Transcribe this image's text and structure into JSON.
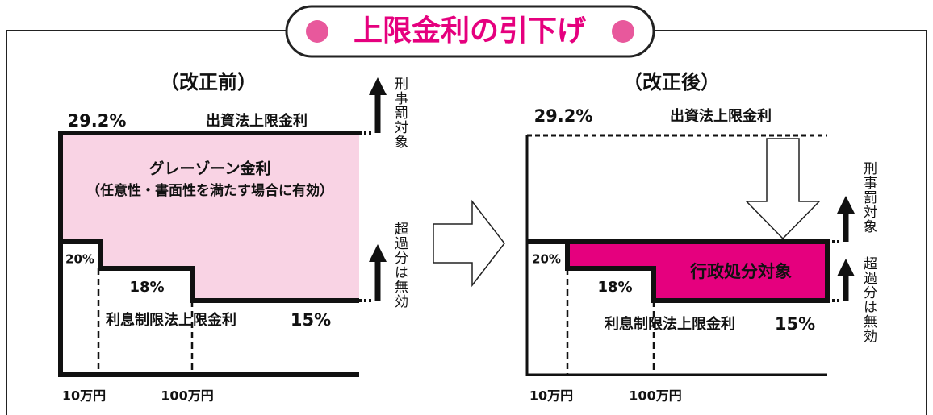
{
  "title": "上限金利の引下げ",
  "panels": [
    {
      "heading": "（改正前）",
      "top_rate": "29.2%",
      "top_label": "出資法上限金利",
      "zone_label": "グレーゾーン金利",
      "zone_note": "（任意性・書面性を満たす場合に有効）",
      "rate_20": "20%",
      "rate_18": "18%",
      "low_label": "利息制限法上限金利",
      "rate_15": "15%",
      "x_10": "10万円",
      "x_100": "100万円",
      "upper_arrow": "刑事罰対象",
      "lower_arrow": "超過分は無効"
    },
    {
      "heading": "（改正後）",
      "top_rate": "29.2%",
      "top_label": "出資法上限金利",
      "zone_label": "行政処分対象",
      "rate_20": "20%",
      "rate_18": "18%",
      "low_label": "利息制限法上限金利",
      "rate_15": "15%",
      "x_10": "10万円",
      "x_100": "100万円",
      "upper_arrow": "刑事罰対象",
      "lower_arrow": "超過分は無効"
    }
  ]
}
